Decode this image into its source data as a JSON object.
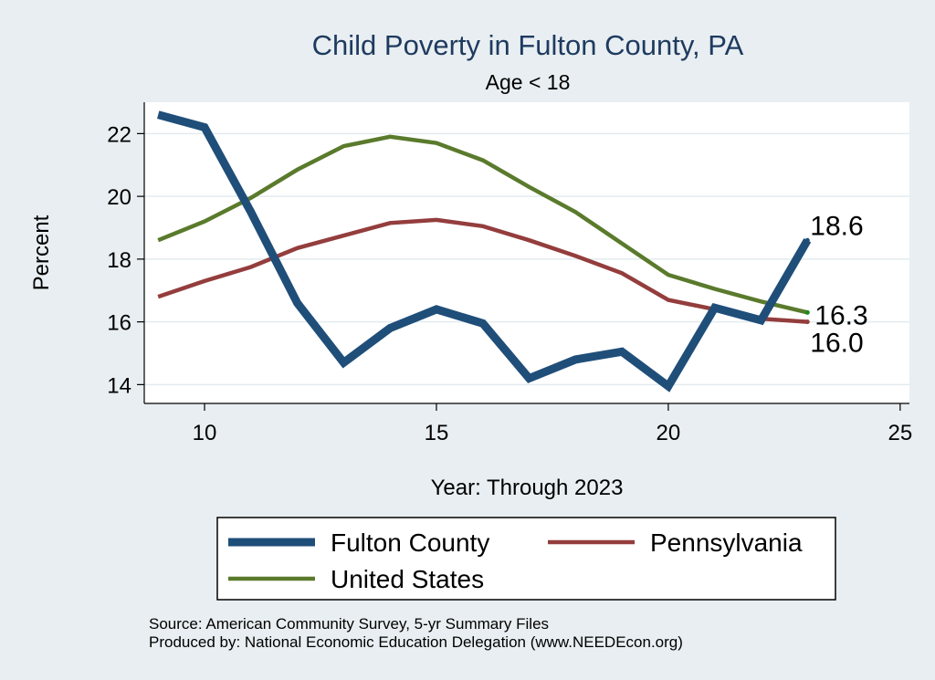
{
  "chart_data": {
    "type": "line",
    "title": "Child Poverty in Fulton County, PA",
    "subtitle": "Age < 18",
    "xlabel": "Year: Through 2023",
    "ylabel": "Percent",
    "xlim": [
      8.7,
      25.2
    ],
    "ylim": [
      13.4,
      23.0
    ],
    "x_ticks": [
      10,
      15,
      20,
      25
    ],
    "y_ticks": [
      14,
      16,
      18,
      20,
      22
    ],
    "x": [
      9,
      10,
      11,
      12,
      13,
      14,
      15,
      16,
      17,
      18,
      19,
      20,
      21,
      22,
      23
    ],
    "grid": true,
    "legend_position": "bottom",
    "series": [
      {
        "name": "Fulton County",
        "color": "#1f4e79",
        "values": [
          22.6,
          22.2,
          19.5,
          16.6,
          14.7,
          15.8,
          16.4,
          15.95,
          14.2,
          14.8,
          15.05,
          13.95,
          16.45,
          16.05,
          18.6
        ],
        "end_label": "18.6"
      },
      {
        "name": "Pennsylvania",
        "color": "#943d3d",
        "values": [
          16.8,
          17.3,
          17.75,
          18.35,
          18.75,
          19.15,
          19.25,
          19.05,
          18.6,
          18.1,
          17.55,
          16.7,
          16.4,
          16.1,
          16.0
        ],
        "end_label": "16.0"
      },
      {
        "name": "United States",
        "color": "#5a7a2c",
        "values": [
          18.6,
          19.2,
          19.95,
          20.85,
          21.6,
          21.9,
          21.7,
          21.15,
          20.3,
          19.5,
          18.5,
          17.5,
          17.05,
          16.65,
          16.3
        ],
        "end_label": "16.3"
      }
    ],
    "notes": [
      "Source: American Community Survey, 5-yr Summary Files",
      "Produced by: National Economic Education Delegation (www.NEEDEcon.org)"
    ]
  }
}
